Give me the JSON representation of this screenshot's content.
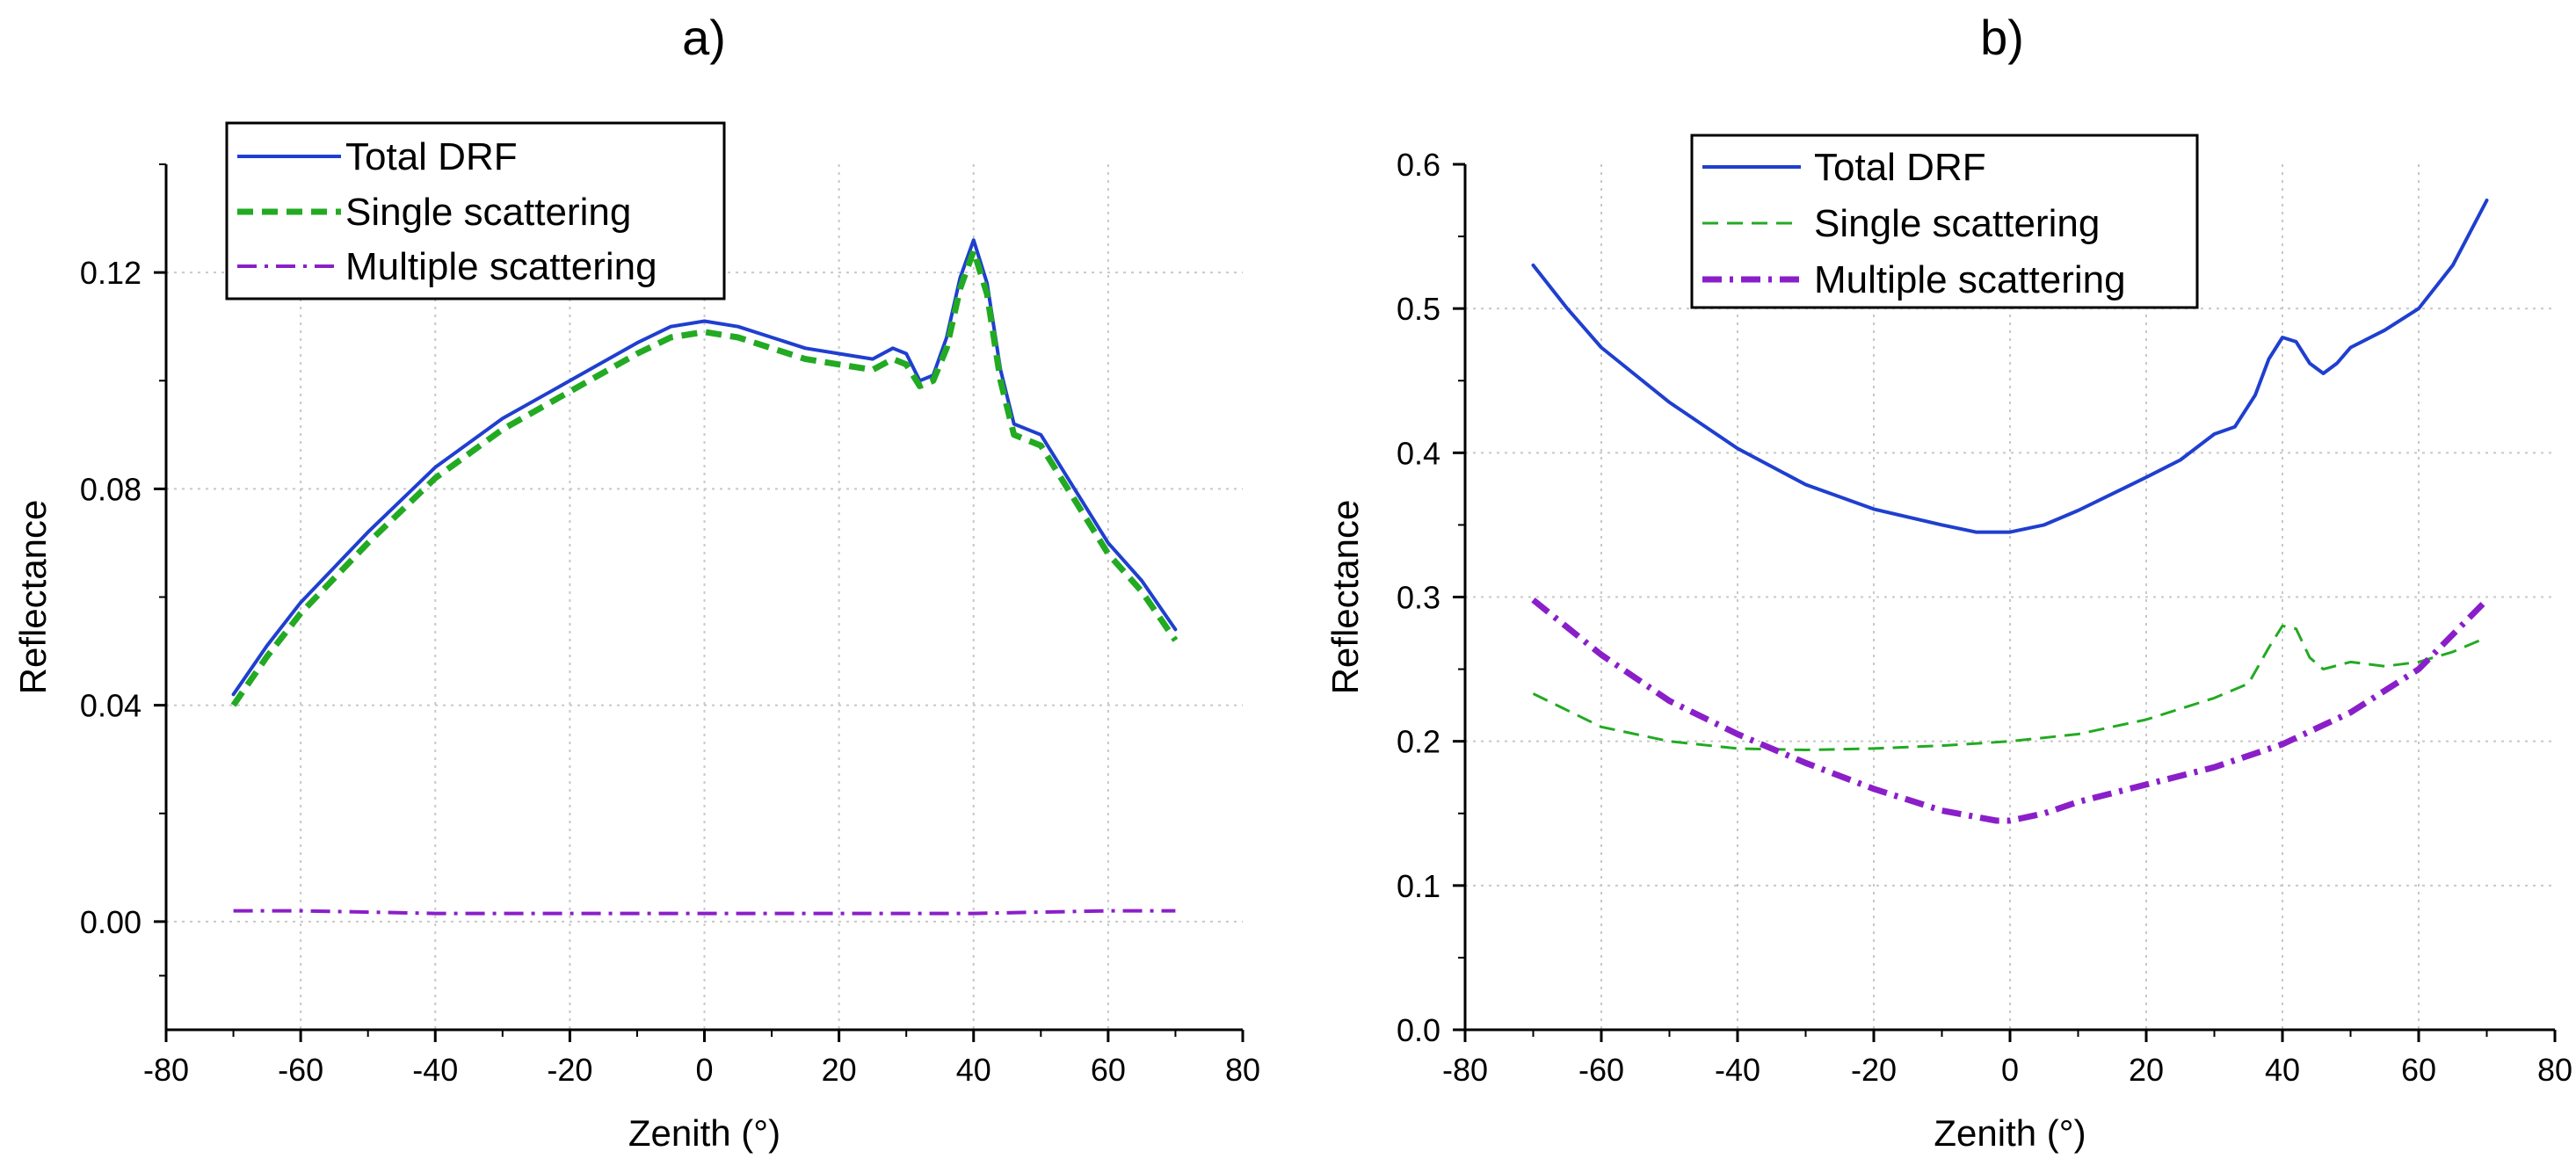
{
  "chart_data": [
    {
      "panel_label": "a)",
      "type": "line",
      "xlabel": "Zenith (°)",
      "ylabel": "Reflectance",
      "xlim": [
        -80,
        80
      ],
      "ylim": [
        -0.02,
        0.14
      ],
      "xticks": [
        -80,
        -60,
        -40,
        -20,
        0,
        20,
        40,
        60,
        80
      ],
      "xtick_labels": [
        "-80",
        "-60",
        "-40",
        "-20",
        "0",
        "20",
        "40",
        "60",
        "80"
      ],
      "yticks": [
        0.0,
        0.04,
        0.08,
        0.12
      ],
      "ytick_labels": [
        "0.00",
        "0.04",
        "0.08",
        "0.12"
      ],
      "grid": true,
      "legend_position": "top-left",
      "series": [
        {
          "name": "Total DRF",
          "color": "#1f3fcf",
          "style": "solid",
          "points": [
            [
              -70,
              0.042
            ],
            [
              -65,
              0.051
            ],
            [
              -60,
              0.059
            ],
            [
              -50,
              0.072
            ],
            [
              -40,
              0.084
            ],
            [
              -30,
              0.093
            ],
            [
              -20,
              0.1
            ],
            [
              -10,
              0.107
            ],
            [
              -5,
              0.11
            ],
            [
              0,
              0.111
            ],
            [
              5,
              0.11
            ],
            [
              10,
              0.108
            ],
            [
              15,
              0.106
            ],
            [
              20,
              0.105
            ],
            [
              25,
              0.104
            ],
            [
              28,
              0.106
            ],
            [
              30,
              0.105
            ],
            [
              32,
              0.1
            ],
            [
              34,
              0.101
            ],
            [
              36,
              0.108
            ],
            [
              38,
              0.119
            ],
            [
              40,
              0.126
            ],
            [
              42,
              0.118
            ],
            [
              44,
              0.102
            ],
            [
              46,
              0.092
            ],
            [
              50,
              0.09
            ],
            [
              55,
              0.08
            ],
            [
              60,
              0.07
            ],
            [
              65,
              0.063
            ],
            [
              70,
              0.054
            ]
          ]
        },
        {
          "name": "Single scattering",
          "color": "#22aa22",
          "style": "dashed",
          "points": [
            [
              -70,
              0.04
            ],
            [
              -65,
              0.049
            ],
            [
              -60,
              0.057
            ],
            [
              -50,
              0.07
            ],
            [
              -40,
              0.082
            ],
            [
              -30,
              0.091
            ],
            [
              -20,
              0.098
            ],
            [
              -10,
              0.105
            ],
            [
              -5,
              0.108
            ],
            [
              0,
              0.109
            ],
            [
              5,
              0.108
            ],
            [
              10,
              0.106
            ],
            [
              15,
              0.104
            ],
            [
              20,
              0.103
            ],
            [
              25,
              0.102
            ],
            [
              28,
              0.104
            ],
            [
              30,
              0.103
            ],
            [
              32,
              0.099
            ],
            [
              34,
              0.1
            ],
            [
              36,
              0.106
            ],
            [
              38,
              0.117
            ],
            [
              40,
              0.124
            ],
            [
              42,
              0.116
            ],
            [
              44,
              0.1
            ],
            [
              46,
              0.09
            ],
            [
              50,
              0.088
            ],
            [
              55,
              0.078
            ],
            [
              60,
              0.068
            ],
            [
              65,
              0.061
            ],
            [
              70,
              0.052
            ]
          ]
        },
        {
          "name": "Multiple scattering",
          "color": "#8a1fc9",
          "style": "dashdot",
          "points": [
            [
              -70,
              0.002
            ],
            [
              -60,
              0.002
            ],
            [
              -40,
              0.0015
            ],
            [
              -20,
              0.0015
            ],
            [
              0,
              0.0015
            ],
            [
              20,
              0.0015
            ],
            [
              40,
              0.0015
            ],
            [
              60,
              0.002
            ],
            [
              70,
              0.002
            ]
          ]
        }
      ]
    },
    {
      "panel_label": "b)",
      "type": "line",
      "xlabel": "Zenith (°)",
      "ylabel": "Reflectance",
      "xlim": [
        -80,
        80
      ],
      "ylim": [
        0.0,
        0.6
      ],
      "xticks": [
        -80,
        -60,
        -40,
        -20,
        0,
        20,
        40,
        60,
        80
      ],
      "xtick_labels": [
        "-80",
        "-60",
        "-40",
        "-20",
        "0",
        "20",
        "40",
        "60",
        "80"
      ],
      "yticks": [
        0.0,
        0.1,
        0.2,
        0.3,
        0.4,
        0.5,
        0.6
      ],
      "ytick_labels": [
        "0.0",
        "0.1",
        "0.2",
        "0.3",
        "0.4",
        "0.5",
        "0.6"
      ],
      "grid": true,
      "legend_position": "top-center",
      "series": [
        {
          "name": "Total DRF",
          "color": "#1f3fcf",
          "style": "solid",
          "points": [
            [
              -70,
              0.53
            ],
            [
              -65,
              0.5
            ],
            [
              -60,
              0.473
            ],
            [
              -50,
              0.435
            ],
            [
              -40,
              0.403
            ],
            [
              -30,
              0.378
            ],
            [
              -20,
              0.361
            ],
            [
              -10,
              0.35
            ],
            [
              -5,
              0.345
            ],
            [
              0,
              0.345
            ],
            [
              5,
              0.35
            ],
            [
              10,
              0.36
            ],
            [
              20,
              0.383
            ],
            [
              25,
              0.395
            ],
            [
              30,
              0.413
            ],
            [
              33,
              0.418
            ],
            [
              36,
              0.44
            ],
            [
              38,
              0.465
            ],
            [
              40,
              0.48
            ],
            [
              42,
              0.477
            ],
            [
              44,
              0.462
            ],
            [
              46,
              0.455
            ],
            [
              48,
              0.462
            ],
            [
              50,
              0.473
            ],
            [
              55,
              0.485
            ],
            [
              60,
              0.5
            ],
            [
              65,
              0.53
            ],
            [
              70,
              0.575
            ]
          ]
        },
        {
          "name": "Single scattering",
          "color": "#22aa22",
          "style": "dashed",
          "points": [
            [
              -70,
              0.233
            ],
            [
              -60,
              0.21
            ],
            [
              -50,
              0.2
            ],
            [
              -40,
              0.195
            ],
            [
              -30,
              0.194
            ],
            [
              -20,
              0.195
            ],
            [
              -10,
              0.197
            ],
            [
              0,
              0.2
            ],
            [
              10,
              0.205
            ],
            [
              20,
              0.215
            ],
            [
              30,
              0.23
            ],
            [
              35,
              0.24
            ],
            [
              38,
              0.265
            ],
            [
              40,
              0.28
            ],
            [
              42,
              0.278
            ],
            [
              44,
              0.258
            ],
            [
              46,
              0.25
            ],
            [
              50,
              0.255
            ],
            [
              55,
              0.252
            ],
            [
              60,
              0.255
            ],
            [
              65,
              0.262
            ],
            [
              70,
              0.272
            ]
          ]
        },
        {
          "name": "Multiple scattering",
          "color": "#8a1fc9",
          "style": "dashdot",
          "points": [
            [
              -70,
              0.298
            ],
            [
              -60,
              0.26
            ],
            [
              -50,
              0.228
            ],
            [
              -40,
              0.205
            ],
            [
              -30,
              0.185
            ],
            [
              -20,
              0.167
            ],
            [
              -10,
              0.152
            ],
            [
              -2,
              0.145
            ],
            [
              0,
              0.145
            ],
            [
              5,
              0.15
            ],
            [
              10,
              0.158
            ],
            [
              20,
              0.17
            ],
            [
              30,
              0.182
            ],
            [
              40,
              0.198
            ],
            [
              50,
              0.22
            ],
            [
              60,
              0.25
            ],
            [
              70,
              0.298
            ]
          ]
        }
      ]
    }
  ]
}
